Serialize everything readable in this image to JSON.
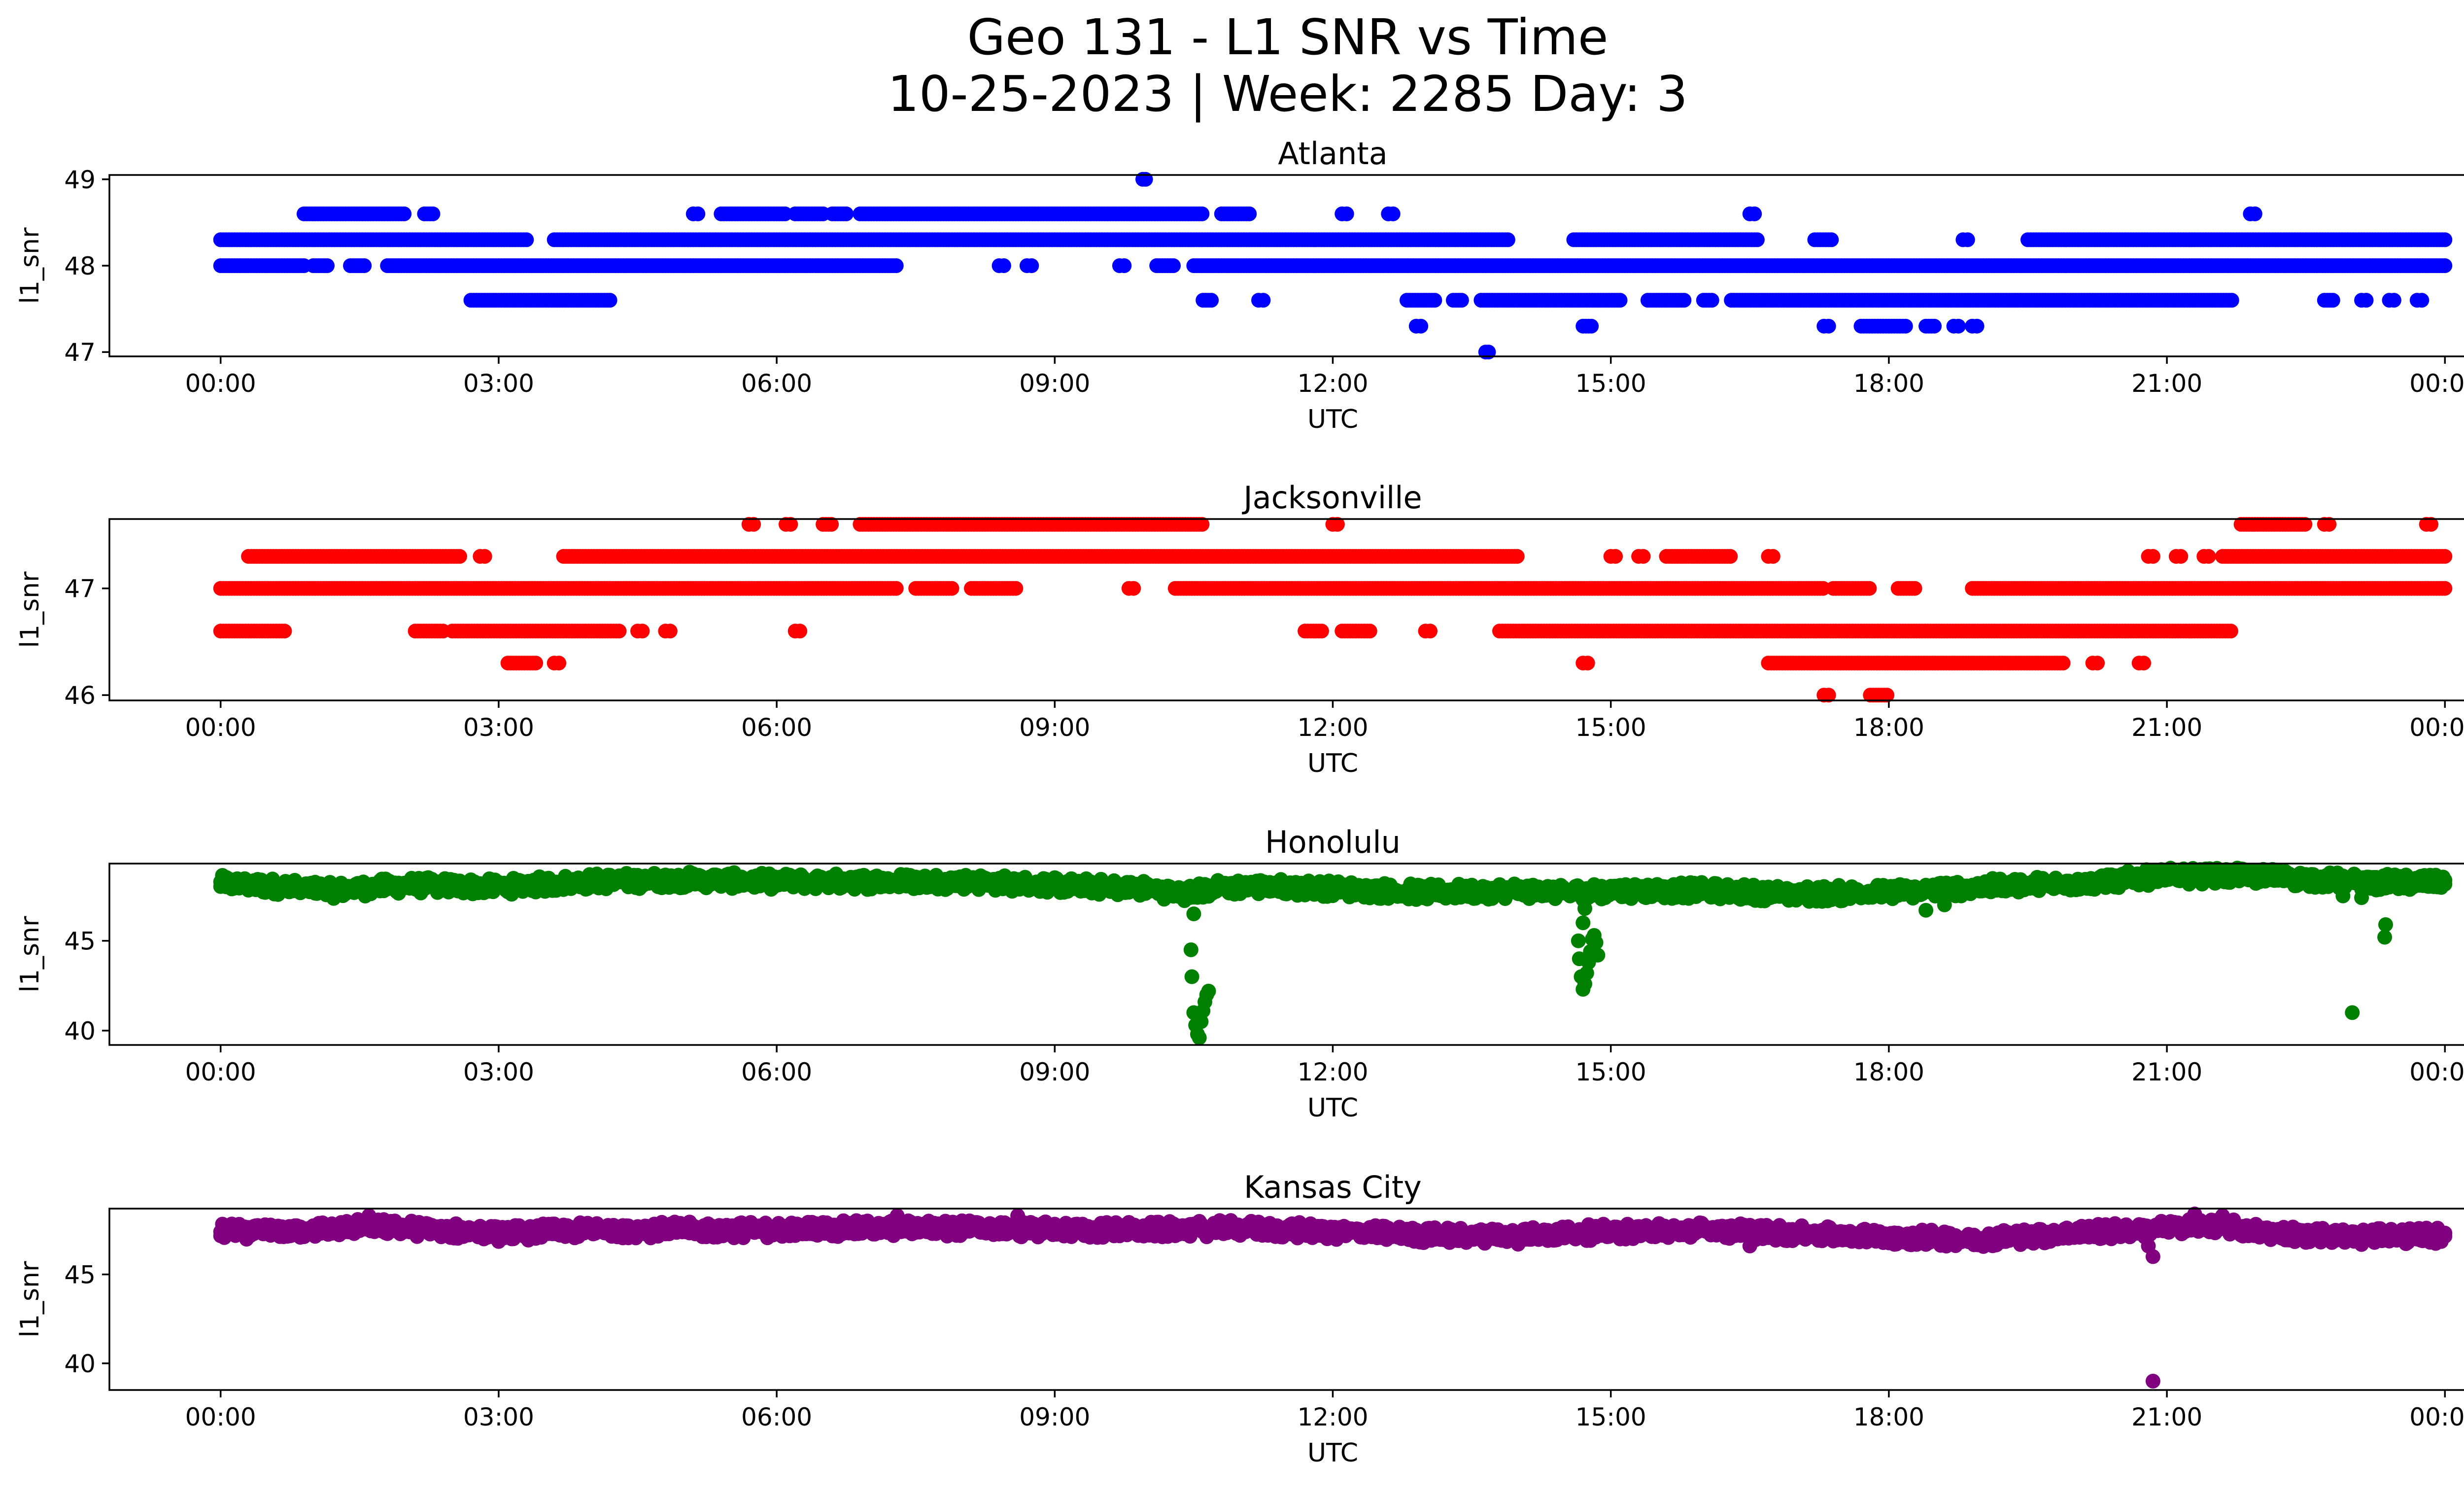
{
  "figure": {
    "title_line1": "Geo 131 - L1 SNR vs Time",
    "title_line2": "10-25-2023 | Week: 2285 Day: 3"
  },
  "chart_data": [
    {
      "type": "scatter",
      "title": "Atlanta",
      "xlabel": "UTC",
      "ylabel": "l1_snr",
      "color": "#0000ff",
      "x_ticks": [
        "00:00",
        "03:00",
        "06:00",
        "09:00",
        "12:00",
        "15:00",
        "18:00",
        "21:00",
        "00:00"
      ],
      "xlim_hours": [
        -1.2,
        25.2
      ],
      "ylim": [
        46.95,
        49.05
      ],
      "y_ticks": [
        47,
        48,
        49
      ],
      "levels": [
        {
          "y": 48.3,
          "segments": [
            [
              0.0,
              3.3
            ],
            [
              3.6,
              13.9
            ],
            [
              14.6,
              16.6
            ],
            [
              17.2,
              17.4
            ],
            [
              18.8,
              18.85
            ],
            [
              19.5,
              24.0
            ]
          ]
        },
        {
          "y": 48.0,
          "segments": [
            [
              0.0,
              0.9
            ],
            [
              1.0,
              1.15
            ],
            [
              1.4,
              1.55
            ],
            [
              1.8,
              7.3
            ],
            [
              8.4,
              8.45
            ],
            [
              8.7,
              8.75
            ],
            [
              9.7,
              9.75
            ],
            [
              10.1,
              10.3
            ],
            [
              10.5,
              24.0
            ]
          ]
        },
        {
          "y": 48.6,
          "segments": [
            [
              0.9,
              2.0
            ],
            [
              2.2,
              2.3
            ],
            [
              5.1,
              5.15
            ],
            [
              5.4,
              6.1
            ],
            [
              6.2,
              6.5
            ],
            [
              6.6,
              6.75
            ],
            [
              6.9,
              10.6
            ],
            [
              10.8,
              11.1
            ],
            [
              12.1,
              12.15
            ],
            [
              12.6,
              12.65
            ],
            [
              16.5,
              16.55
            ],
            [
              21.9,
              21.95
            ]
          ]
        },
        {
          "y": 47.6,
          "segments": [
            [
              2.7,
              4.2
            ],
            [
              10.6,
              10.7
            ],
            [
              11.2,
              11.25
            ],
            [
              12.8,
              13.1
            ],
            [
              13.3,
              13.4
            ],
            [
              13.6,
              15.1
            ],
            [
              15.4,
              15.8
            ],
            [
              16.0,
              16.1
            ],
            [
              16.3,
              21.7
            ],
            [
              22.7,
              22.8
            ],
            [
              23.1,
              23.15
            ],
            [
              23.4,
              23.45
            ],
            [
              23.7,
              23.75
            ]
          ]
        },
        {
          "y": 47.3,
          "segments": [
            [
              12.9,
              12.95
            ],
            [
              14.7,
              14.8
            ],
            [
              17.3,
              17.35
            ],
            [
              17.7,
              18.2
            ],
            [
              18.4,
              18.5
            ],
            [
              18.7,
              18.75
            ],
            [
              18.9,
              18.95
            ]
          ]
        },
        {
          "y": 49.0,
          "segments": [
            [
              9.95,
              9.98
            ]
          ]
        },
        {
          "y": 47.0,
          "segments": [
            [
              13.65,
              13.68
            ]
          ]
        }
      ]
    },
    {
      "type": "scatter",
      "title": "Jacksonville",
      "xlabel": "UTC",
      "ylabel": "l1_snr",
      "color": "#ff0000",
      "x_ticks": [
        "00:00",
        "03:00",
        "06:00",
        "09:00",
        "12:00",
        "15:00",
        "18:00",
        "21:00",
        "00:00"
      ],
      "xlim_hours": [
        -1.2,
        25.2
      ],
      "ylim": [
        45.95,
        47.65
      ],
      "y_ticks": [
        46,
        47
      ],
      "levels": [
        {
          "y": 47.0,
          "segments": [
            [
              0.0,
              7.3
            ],
            [
              7.5,
              7.9
            ],
            [
              8.1,
              8.6
            ],
            [
              9.8,
              9.85
            ],
            [
              10.3,
              17.3
            ],
            [
              17.4,
              17.8
            ],
            [
              18.1,
              18.3
            ],
            [
              18.9,
              24.0
            ]
          ]
        },
        {
          "y": 47.3,
          "segments": [
            [
              0.3,
              2.6
            ],
            [
              2.8,
              2.85
            ],
            [
              3.7,
              14.0
            ],
            [
              15.0,
              15.05
            ],
            [
              15.3,
              15.35
            ],
            [
              15.6,
              16.3
            ],
            [
              16.7,
              16.75
            ],
            [
              20.8,
              20.85
            ],
            [
              21.1,
              21.15
            ],
            [
              21.4,
              21.45
            ],
            [
              21.6,
              24.0
            ]
          ]
        },
        {
          "y": 46.6,
          "segments": [
            [
              0.0,
              0.7
            ],
            [
              2.1,
              2.4
            ],
            [
              2.5,
              4.3
            ],
            [
              4.5,
              4.55
            ],
            [
              4.8,
              4.85
            ],
            [
              6.2,
              6.25
            ],
            [
              11.7,
              11.9
            ],
            [
              12.1,
              12.4
            ],
            [
              13.0,
              13.05
            ],
            [
              13.8,
              21.7
            ]
          ]
        },
        {
          "y": 47.6,
          "segments": [
            [
              5.7,
              5.75
            ],
            [
              6.1,
              6.15
            ],
            [
              6.5,
              6.6
            ],
            [
              6.9,
              10.6
            ],
            [
              12.0,
              12.05
            ],
            [
              21.8,
              22.5
            ],
            [
              22.7,
              22.75
            ],
            [
              23.8,
              23.85
            ]
          ]
        },
        {
          "y": 46.3,
          "segments": [
            [
              3.1,
              3.4
            ],
            [
              3.6,
              3.65
            ],
            [
              14.7,
              14.75
            ],
            [
              16.7,
              19.9
            ],
            [
              20.2,
              20.25
            ],
            [
              20.7,
              20.75
            ]
          ]
        },
        {
          "y": 46.0,
          "segments": [
            [
              17.3,
              17.35
            ],
            [
              17.8,
              18.0
            ]
          ]
        }
      ]
    },
    {
      "type": "scatter",
      "title": "Honolulu",
      "xlabel": "UTC",
      "ylabel": "l1_snr",
      "color": "#008000",
      "x_ticks": [
        "00:00",
        "03:00",
        "06:00",
        "09:00",
        "12:00",
        "15:00",
        "18:00",
        "21:00",
        "00:00"
      ],
      "xlim_hours": [
        -1.2,
        25.2
      ],
      "ylim": [
        39.2,
        49.3
      ],
      "y_ticks": [
        40,
        45
      ],
      "band": [
        [
          0.0,
          48.2
        ],
        [
          0.7,
          48.0
        ],
        [
          1.2,
          47.8
        ],
        [
          2.0,
          48.1
        ],
        [
          3.0,
          48.0
        ],
        [
          4.0,
          48.3
        ],
        [
          5.0,
          48.4
        ],
        [
          6.0,
          48.3
        ],
        [
          7.0,
          48.3
        ],
        [
          8.0,
          48.3
        ],
        [
          9.0,
          48.1
        ],
        [
          10.0,
          47.9
        ],
        [
          10.4,
          47.6
        ],
        [
          10.8,
          48.0
        ],
        [
          11.5,
          48.0
        ],
        [
          12.0,
          47.9
        ],
        [
          13.0,
          47.7
        ],
        [
          14.0,
          47.8
        ],
        [
          14.6,
          47.7
        ],
        [
          15.0,
          47.8
        ],
        [
          16.0,
          47.8
        ],
        [
          17.0,
          47.6
        ],
        [
          18.0,
          47.7
        ],
        [
          19.0,
          48.0
        ],
        [
          20.0,
          48.2
        ],
        [
          21.0,
          48.6
        ],
        [
          22.0,
          48.6
        ],
        [
          23.0,
          48.3
        ],
        [
          24.0,
          48.2
        ]
      ],
      "band_jitter": 0.45,
      "outliers": [
        [
          10.47,
          44.5
        ],
        [
          10.48,
          43.0
        ],
        [
          10.5,
          41.0
        ],
        [
          10.52,
          40.3
        ],
        [
          10.54,
          39.8
        ],
        [
          10.56,
          39.6
        ],
        [
          10.58,
          40.5
        ],
        [
          10.6,
          41.1
        ],
        [
          10.62,
          41.6
        ],
        [
          10.64,
          42.0
        ],
        [
          10.66,
          42.2
        ],
        [
          10.5,
          46.5
        ],
        [
          14.65,
          45.0
        ],
        [
          14.66,
          44.0
        ],
        [
          14.68,
          43.0
        ],
        [
          14.7,
          42.3
        ],
        [
          14.72,
          42.6
        ],
        [
          14.74,
          43.2
        ],
        [
          14.76,
          43.8
        ],
        [
          14.78,
          44.4
        ],
        [
          14.8,
          45.1
        ],
        [
          14.82,
          45.3
        ],
        [
          14.84,
          44.9
        ],
        [
          14.86,
          44.2
        ],
        [
          14.7,
          46.0
        ],
        [
          14.72,
          46.8
        ],
        [
          18.4,
          46.7
        ],
        [
          18.6,
          47.0
        ],
        [
          23.0,
          41.0
        ],
        [
          23.35,
          45.2
        ],
        [
          23.36,
          45.9
        ],
        [
          22.9,
          47.5
        ],
        [
          23.1,
          47.4
        ]
      ]
    },
    {
      "type": "scatter",
      "title": "Kansas City",
      "xlabel": "UTC",
      "ylabel": "l1_snr",
      "color": "#800080",
      "x_ticks": [
        "00:00",
        "03:00",
        "06:00",
        "09:00",
        "12:00",
        "15:00",
        "18:00",
        "21:00",
        "00:00"
      ],
      "xlim_hours": [
        -1.2,
        25.2
      ],
      "ylim": [
        38.5,
        48.7
      ],
      "y_ticks": [
        40,
        45
      ],
      "band": [
        [
          0.0,
          47.4
        ],
        [
          1.0,
          47.5
        ],
        [
          1.6,
          47.7
        ],
        [
          2.0,
          47.6
        ],
        [
          3.0,
          47.3
        ],
        [
          4.0,
          47.5
        ],
        [
          5.0,
          47.5
        ],
        [
          6.0,
          47.5
        ],
        [
          7.0,
          47.6
        ],
        [
          8.0,
          47.6
        ],
        [
          9.0,
          47.5
        ],
        [
          10.0,
          47.5
        ],
        [
          11.0,
          47.6
        ],
        [
          12.0,
          47.4
        ],
        [
          13.0,
          47.2
        ],
        [
          14.0,
          47.2
        ],
        [
          15.0,
          47.4
        ],
        [
          16.0,
          47.5
        ],
        [
          17.0,
          47.3
        ],
        [
          18.0,
          47.1
        ],
        [
          19.0,
          47.0
        ],
        [
          20.0,
          47.3
        ],
        [
          21.0,
          47.6
        ],
        [
          21.5,
          47.8
        ],
        [
          22.0,
          47.4
        ],
        [
          23.0,
          47.1
        ],
        [
          24.0,
          47.2
        ]
      ],
      "band_jitter": 0.45,
      "outliers": [
        [
          1.6,
          48.3
        ],
        [
          7.3,
          48.3
        ],
        [
          8.6,
          48.3
        ],
        [
          14.0,
          46.7
        ],
        [
          16.5,
          46.6
        ],
        [
          20.8,
          46.6
        ],
        [
          20.85,
          46.0
        ],
        [
          20.85,
          39.0
        ],
        [
          21.3,
          48.4
        ],
        [
          21.6,
          48.3
        ]
      ]
    }
  ]
}
